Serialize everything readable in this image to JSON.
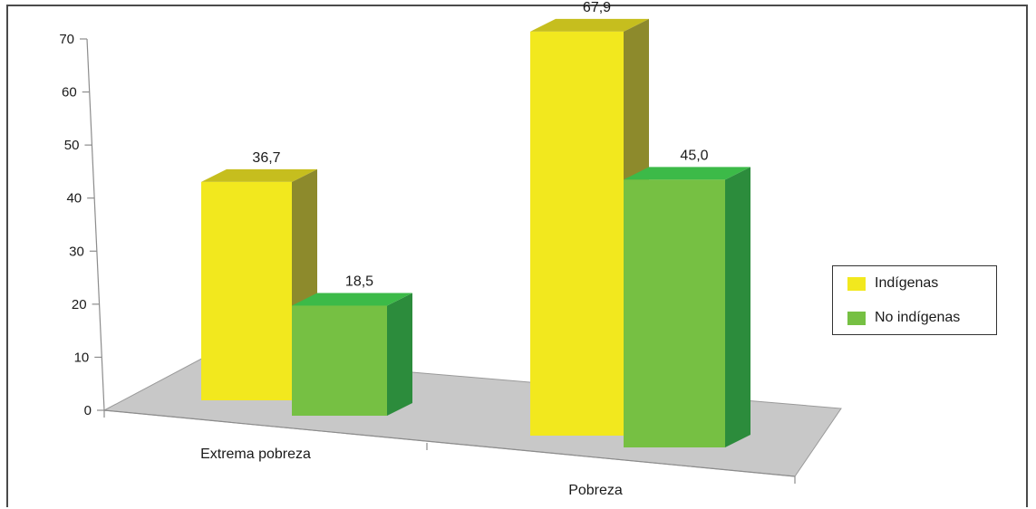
{
  "chart_data": {
    "type": "bar",
    "categories": [
      "Extrema pobreza",
      "Pobreza"
    ],
    "series": [
      {
        "name": "Indígenas",
        "values": [
          36.7,
          67.9
        ],
        "labels": [
          "36,7",
          "67,9"
        ],
        "color": "#f2e81e"
      },
      {
        "name": "No indígenas",
        "values": [
          18.5,
          45.0
        ],
        "labels": [
          "18,5",
          "45,0"
        ],
        "color": "#76c043"
      }
    ],
    "yticks": [
      "0",
      "10",
      "20",
      "30",
      "40",
      "50",
      "60",
      "70"
    ],
    "ylim": [
      0,
      70
    ],
    "grid": false,
    "legend": "right",
    "three_d": true
  }
}
